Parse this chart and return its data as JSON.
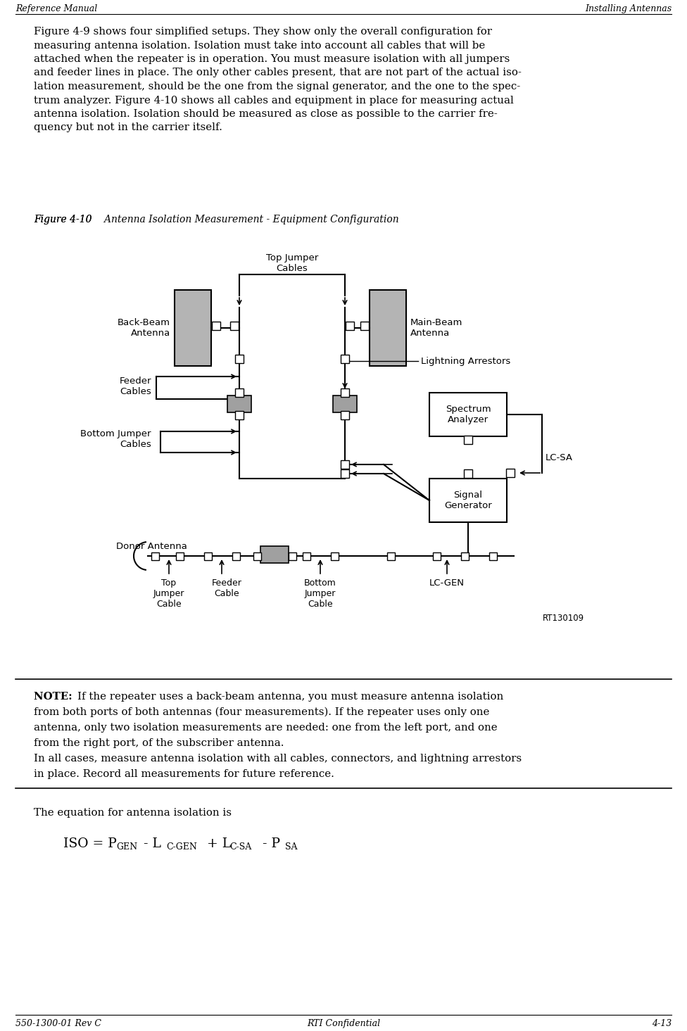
{
  "header_left": "Reference Manual",
  "header_right": "Installing Antennas",
  "footer_left": "550-1300-01 Rev C",
  "footer_center": "RTI Confidential",
  "footer_right": "4-13",
  "para_lines": [
    "Figure 4-9 shows four simplified setups. They show only the overall configuration for",
    "measuring antenna isolation. Isolation must take into account all cables that will be",
    "attached when the repeater is in operation. You must measure isolation with all jumpers",
    "and feeder lines in place. The only other cables present, that are not part of the actual iso-",
    "lation measurement, should be the one from the signal generator, and the one to the spec-",
    "trum analyzer. Figure 4-10 shows all cables and equipment in place for measuring actual",
    "antenna isolation. Isolation should be measured as close as possible to the carrier fre-",
    "quency but not in the carrier itself."
  ],
  "fig_caption_num": "Figure 4-10",
  "fig_caption_text": "    Antenna Isolation Measurement - Equipment Configuration",
  "note_bold": "NOTE:  ",
  "note_lines": [
    "If the repeater uses a back-beam antenna, you must measure antenna isolation",
    "from both ports of both antennas (four measurements). If the repeater uses only one",
    "antenna, only two isolation measurements are needed: one from the left port, and one",
    "from the right port, of the subscriber antenna.",
    "In all cases, measure antenna isolation with all cables, connectors, and lightning arrestors",
    "in place. Record all measurements for future reference."
  ],
  "eq_intro": "The equation for antenna isolation is",
  "bg_color": "#ffffff",
  "gray_antenna": "#b4b4b4",
  "gray_box": "#a0a0a0",
  "lc_gray": "#d0d0d0"
}
